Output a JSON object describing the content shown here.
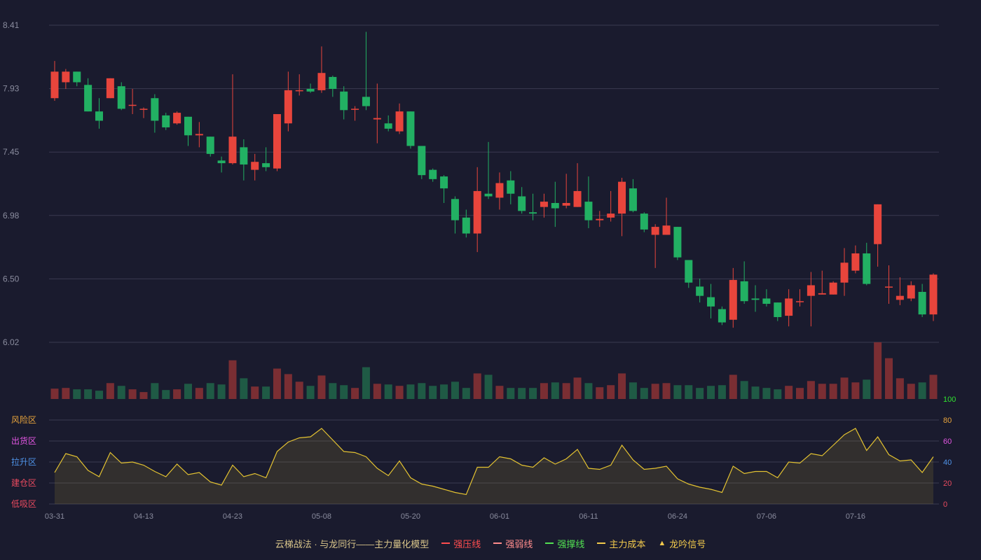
{
  "chart_data": {
    "type": "candlestick",
    "price_ticks": [
      "8.41",
      "7.93",
      "7.45",
      "6.98",
      "6.50",
      "6.02"
    ],
    "price_range": [
      6.02,
      8.41
    ],
    "x_ticks": [
      {
        "index": 0,
        "label": "03-31"
      },
      {
        "index": 8,
        "label": "04-13"
      },
      {
        "index": 16,
        "label": "04-23"
      },
      {
        "index": 24,
        "label": "05-08"
      },
      {
        "index": 32,
        "label": "05-20"
      },
      {
        "index": 40,
        "label": "06-01"
      },
      {
        "index": 48,
        "label": "06-11"
      },
      {
        "index": 56,
        "label": "06-24"
      },
      {
        "index": 64,
        "label": "07-06"
      },
      {
        "index": 72,
        "label": "07-16"
      }
    ],
    "candles": [
      [
        7.86,
        8.06,
        7.84,
        8.14
      ],
      [
        7.98,
        8.06,
        7.93,
        8.08
      ],
      [
        8.06,
        7.98,
        7.95,
        8.06
      ],
      [
        7.96,
        7.76,
        7.76,
        8.01
      ],
      [
        7.76,
        7.69,
        7.63,
        7.86
      ],
      [
        7.86,
        8.01,
        7.86,
        8.01
      ],
      [
        7.95,
        7.78,
        7.77,
        7.98
      ],
      [
        7.81,
        7.81,
        7.74,
        7.93
      ],
      [
        7.78,
        7.78,
        7.71,
        7.79
      ],
      [
        7.86,
        7.69,
        7.6,
        7.89
      ],
      [
        7.73,
        7.64,
        7.62,
        7.75
      ],
      [
        7.67,
        7.75,
        7.66,
        7.76
      ],
      [
        7.72,
        7.58,
        7.5,
        7.72
      ],
      [
        7.58,
        7.59,
        7.49,
        7.68
      ],
      [
        7.57,
        7.44,
        7.42,
        7.57
      ],
      [
        7.39,
        7.37,
        7.3,
        7.42
      ],
      [
        7.37,
        7.57,
        7.36,
        8.04
      ],
      [
        7.49,
        7.36,
        7.24,
        7.55
      ],
      [
        7.32,
        7.38,
        7.24,
        7.44
      ],
      [
        7.37,
        7.34,
        7.31,
        7.49
      ],
      [
        7.33,
        7.74,
        7.31,
        7.74
      ],
      [
        7.67,
        7.92,
        7.61,
        8.06
      ],
      [
        7.92,
        7.92,
        7.88,
        8.04
      ],
      [
        7.93,
        7.91,
        7.9,
        7.97
      ],
      [
        7.92,
        8.05,
        7.9,
        8.25
      ],
      [
        8.02,
        7.93,
        7.87,
        8.03
      ],
      [
        7.91,
        7.77,
        7.7,
        7.95
      ],
      [
        7.78,
        7.78,
        7.69,
        7.8
      ],
      [
        7.87,
        7.8,
        7.77,
        8.36
      ],
      [
        7.7,
        7.71,
        7.52,
        7.97
      ],
      [
        7.67,
        7.63,
        7.61,
        7.73
      ],
      [
        7.61,
        7.76,
        7.59,
        7.82
      ],
      [
        7.76,
        7.5,
        7.48,
        7.76
      ],
      [
        7.5,
        7.28,
        7.25,
        7.5
      ],
      [
        7.32,
        7.25,
        7.23,
        7.33
      ],
      [
        7.27,
        7.18,
        7.07,
        7.28
      ],
      [
        7.1,
        6.94,
        6.84,
        7.12
      ],
      [
        6.96,
        6.84,
        6.81,
        7.02
      ],
      [
        6.84,
        7.16,
        6.7,
        7.34
      ],
      [
        7.14,
        7.12,
        7.1,
        7.53
      ],
      [
        7.11,
        7.22,
        7.02,
        7.3
      ],
      [
        7.24,
        7.14,
        7.06,
        7.31
      ],
      [
        7.12,
        7.01,
        6.99,
        7.19
      ],
      [
        7.0,
        6.99,
        6.94,
        7.14
      ],
      [
        7.04,
        7.08,
        6.96,
        7.14
      ],
      [
        7.07,
        7.03,
        6.89,
        7.23
      ],
      [
        7.05,
        7.07,
        7.03,
        7.29
      ],
      [
        7.04,
        7.16,
        7.04,
        7.37
      ],
      [
        7.08,
        6.94,
        6.88,
        7.27
      ],
      [
        6.94,
        6.95,
        6.89,
        7.01
      ],
      [
        6.96,
        6.99,
        6.93,
        7.16
      ],
      [
        6.99,
        7.23,
        6.82,
        7.26
      ],
      [
        7.18,
        7.01,
        7.0,
        7.25
      ],
      [
        6.99,
        6.87,
        6.85,
        7.0
      ],
      [
        6.83,
        6.89,
        6.58,
        6.91
      ],
      [
        6.83,
        6.9,
        6.83,
        7.11
      ],
      [
        6.89,
        6.66,
        6.64,
        6.89
      ],
      [
        6.64,
        6.47,
        6.43,
        6.64
      ],
      [
        6.44,
        6.37,
        6.32,
        6.5
      ],
      [
        6.36,
        6.29,
        6.2,
        6.46
      ],
      [
        6.27,
        6.17,
        6.15,
        6.29
      ],
      [
        6.19,
        6.49,
        6.13,
        6.58
      ],
      [
        6.48,
        6.33,
        6.31,
        6.63
      ],
      [
        6.35,
        6.34,
        6.25,
        6.45
      ],
      [
        6.35,
        6.31,
        6.29,
        6.42
      ],
      [
        6.32,
        6.21,
        6.18,
        6.32
      ],
      [
        6.22,
        6.35,
        6.14,
        6.42
      ],
      [
        6.33,
        6.33,
        6.29,
        6.42
      ],
      [
        6.37,
        6.45,
        6.14,
        6.55
      ],
      [
        6.38,
        6.39,
        6.38,
        6.56
      ],
      [
        6.38,
        6.47,
        6.38,
        6.48
      ],
      [
        6.47,
        6.62,
        6.37,
        6.73
      ],
      [
        6.56,
        6.69,
        6.54,
        6.75
      ],
      [
        6.69,
        6.46,
        6.45,
        6.77
      ],
      [
        6.76,
        7.06,
        6.59,
        7.06
      ],
      [
        6.44,
        6.44,
        6.31,
        6.6
      ],
      [
        6.34,
        6.37,
        6.3,
        6.51
      ],
      [
        6.35,
        6.45,
        6.33,
        6.48
      ],
      [
        6.4,
        6.23,
        6.21,
        6.46
      ],
      [
        6.23,
        6.53,
        6.18,
        6.54
      ]
    ],
    "volumes": [
      15,
      16,
      14,
      14,
      12,
      23,
      19,
      14,
      10,
      23,
      13,
      14,
      22,
      16,
      23,
      21,
      56,
      30,
      18,
      18,
      44,
      36,
      25,
      19,
      34,
      23,
      20,
      16,
      46,
      22,
      21,
      19,
      21,
      23,
      19,
      21,
      25,
      16,
      37,
      35,
      19,
      16,
      16,
      16,
      23,
      24,
      23,
      31,
      23,
      17,
      20,
      37,
      24,
      16,
      22,
      23,
      20,
      20,
      16,
      19,
      20,
      35,
      26,
      18,
      16,
      14,
      19,
      16,
      26,
      22,
      22,
      31,
      24,
      28,
      82,
      59,
      30,
      22,
      24,
      35
    ],
    "indicator_values": [
      30,
      48,
      45,
      32,
      26,
      49,
      39,
      40,
      37,
      31,
      26,
      38,
      28,
      30,
      21,
      18,
      37,
      26,
      29,
      25,
      50,
      59,
      63,
      64,
      72,
      61,
      50,
      49,
      45,
      34,
      27,
      41,
      25,
      19,
      17,
      14,
      11,
      9,
      35,
      35,
      45,
      43,
      37,
      35,
      44,
      38,
      43,
      52,
      34,
      33,
      37,
      56,
      42,
      33,
      34,
      36,
      24,
      19,
      16,
      14,
      11,
      36,
      29,
      31,
      31,
      25,
      40,
      39,
      48,
      46,
      56,
      66,
      72,
      51,
      64,
      47,
      41,
      42,
      30,
      45
    ],
    "indicator_range": [
      0,
      100
    ],
    "indicator_ticks": [
      "100",
      "80",
      "60",
      "40",
      "20",
      "0"
    ],
    "zones": [
      {
        "label": "风险区",
        "color": "#e8a43c"
      },
      {
        "label": "出货区",
        "color": "#e356e3"
      },
      {
        "label": "拉升区",
        "color": "#4f93e8"
      },
      {
        "label": "建仓区",
        "color": "#e84a5f"
      },
      {
        "label": "低吸区",
        "color": "#e84a5f"
      }
    ],
    "indicator_tick_colors": [
      "#30e030",
      "#e8a43c",
      "#e356e3",
      "#4f93e8",
      "#e84a5f",
      "#e84a5f"
    ],
    "colors": {
      "up": "#e8453c",
      "down": "#22b063",
      "indicator_line": "#e3c231",
      "grid": "#3a3b50"
    }
  },
  "legend": {
    "title": "云梯战法 · 与龙同行——主力量化模型",
    "items": [
      {
        "label": "强压线",
        "color": "#ff4d4f",
        "style": "solid"
      },
      {
        "label": "强弱线",
        "color": "#ff8c8c",
        "style": "dashed"
      },
      {
        "label": "强撑线",
        "color": "#52e052",
        "style": "solid"
      },
      {
        "label": "主力成本",
        "color": "#f2c94c",
        "style": "dashed"
      }
    ],
    "signal": {
      "label": "龙吟信号",
      "color": "#f2c94c"
    }
  }
}
